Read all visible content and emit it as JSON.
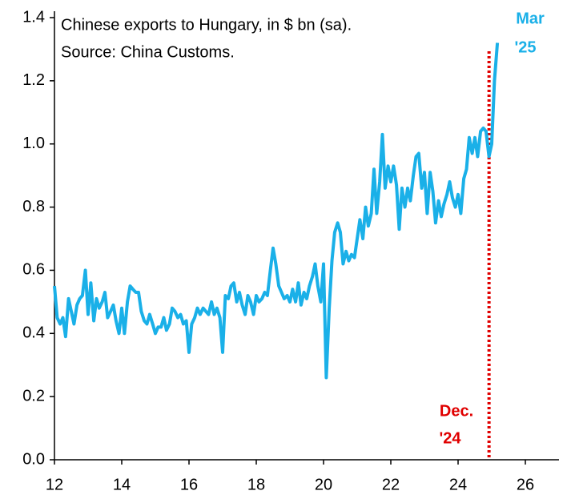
{
  "chart_data": {
    "type": "line",
    "title": "Chinese exports to Hungary, in $ bn (sa).",
    "subtitle": "Source: China Customs.",
    "color": "#1ab0e8",
    "x": [
      12.0,
      12.08,
      12.17,
      12.25,
      12.33,
      12.42,
      12.5,
      12.58,
      12.67,
      12.75,
      12.83,
      12.92,
      13.0,
      13.08,
      13.17,
      13.25,
      13.33,
      13.42,
      13.5,
      13.58,
      13.67,
      13.75,
      13.83,
      13.92,
      14.0,
      14.08,
      14.17,
      14.25,
      14.33,
      14.42,
      14.5,
      14.58,
      14.67,
      14.75,
      14.83,
      14.92,
      15.0,
      15.08,
      15.17,
      15.25,
      15.33,
      15.42,
      15.5,
      15.58,
      15.67,
      15.75,
      15.83,
      15.92,
      16.0,
      16.08,
      16.17,
      16.25,
      16.33,
      16.42,
      16.5,
      16.58,
      16.67,
      16.75,
      16.83,
      16.92,
      17.0,
      17.08,
      17.17,
      17.25,
      17.33,
      17.42,
      17.5,
      17.58,
      17.67,
      17.75,
      17.83,
      17.92,
      18.0,
      18.08,
      18.17,
      18.25,
      18.33,
      18.42,
      18.5,
      18.58,
      18.67,
      18.75,
      18.83,
      18.92,
      19.0,
      19.08,
      19.17,
      19.25,
      19.33,
      19.42,
      19.5,
      19.58,
      19.67,
      19.75,
      19.83,
      19.92,
      20.0,
      20.08,
      20.17,
      20.25,
      20.33,
      20.42,
      20.5,
      20.58,
      20.67,
      20.75,
      20.83,
      20.92,
      21.0,
      21.08,
      21.17,
      21.25,
      21.33,
      21.42,
      21.5,
      21.58,
      21.67,
      21.75,
      21.83,
      21.92,
      22.0,
      22.08,
      22.17,
      22.25,
      22.33,
      22.42,
      22.5,
      22.58,
      22.67,
      22.75,
      22.83,
      22.92,
      23.0,
      23.08,
      23.17,
      23.25,
      23.33,
      23.42,
      23.5,
      23.58,
      23.67,
      23.75,
      23.83,
      23.92,
      24.0,
      24.08,
      24.17,
      24.25,
      24.33,
      24.42,
      24.5,
      24.58,
      24.67,
      24.75,
      24.83,
      24.92,
      25.0,
      25.08,
      25.17
    ],
    "values": [
      0.55,
      0.45,
      0.43,
      0.45,
      0.39,
      0.51,
      0.47,
      0.43,
      0.49,
      0.51,
      0.52,
      0.6,
      0.46,
      0.56,
      0.44,
      0.51,
      0.48,
      0.5,
      0.53,
      0.45,
      0.47,
      0.49,
      0.44,
      0.4,
      0.48,
      0.4,
      0.5,
      0.55,
      0.54,
      0.53,
      0.53,
      0.47,
      0.44,
      0.43,
      0.46,
      0.43,
      0.4,
      0.42,
      0.42,
      0.45,
      0.41,
      0.43,
      0.48,
      0.47,
      0.45,
      0.46,
      0.43,
      0.44,
      0.34,
      0.43,
      0.45,
      0.48,
      0.46,
      0.48,
      0.47,
      0.46,
      0.5,
      0.46,
      0.48,
      0.45,
      0.34,
      0.52,
      0.51,
      0.55,
      0.56,
      0.5,
      0.53,
      0.49,
      0.46,
      0.52,
      0.5,
      0.46,
      0.52,
      0.5,
      0.51,
      0.53,
      0.52,
      0.6,
      0.67,
      0.62,
      0.55,
      0.53,
      0.51,
      0.52,
      0.5,
      0.54,
      0.5,
      0.56,
      0.49,
      0.53,
      0.51,
      0.55,
      0.58,
      0.62,
      0.55,
      0.5,
      0.62,
      0.26,
      0.48,
      0.63,
      0.72,
      0.75,
      0.72,
      0.62,
      0.66,
      0.63,
      0.65,
      0.64,
      0.7,
      0.76,
      0.7,
      0.8,
      0.74,
      0.78,
      0.92,
      0.78,
      0.88,
      1.03,
      0.86,
      0.93,
      0.88,
      0.93,
      0.87,
      0.73,
      0.86,
      0.8,
      0.86,
      0.82,
      0.9,
      0.96,
      0.97,
      0.86,
      0.91,
      0.78,
      0.91,
      0.85,
      0.75,
      0.82,
      0.77,
      0.81,
      0.84,
      0.88,
      0.83,
      0.8,
      0.84,
      0.78,
      0.89,
      0.92,
      1.02,
      0.97,
      1.02,
      0.96,
      1.04,
      1.05,
      1.04,
      0.96,
      1.0,
      1.2,
      1.32
    ],
    "xlim": [
      12,
      27
    ],
    "xticks": [
      12,
      14,
      16,
      18,
      20,
      22,
      24,
      26
    ],
    "ylim": [
      0,
      1.4
    ],
    "yticks": [
      {
        "value": 0,
        "label": "0.0"
      },
      0.2,
      0.4,
      0.6,
      0.8,
      {
        "value": 1,
        "label": "1.0"
      },
      1.2,
      1.4
    ],
    "reference_line": {
      "x": 24.92,
      "color": "#e00000"
    },
    "annotations": [
      {
        "lines": [
          "Mar",
          "'25"
        ],
        "color": "#1ab0e8"
      },
      {
        "lines": [
          "Dec.",
          "'24"
        ],
        "color": "#e00000"
      }
    ]
  }
}
